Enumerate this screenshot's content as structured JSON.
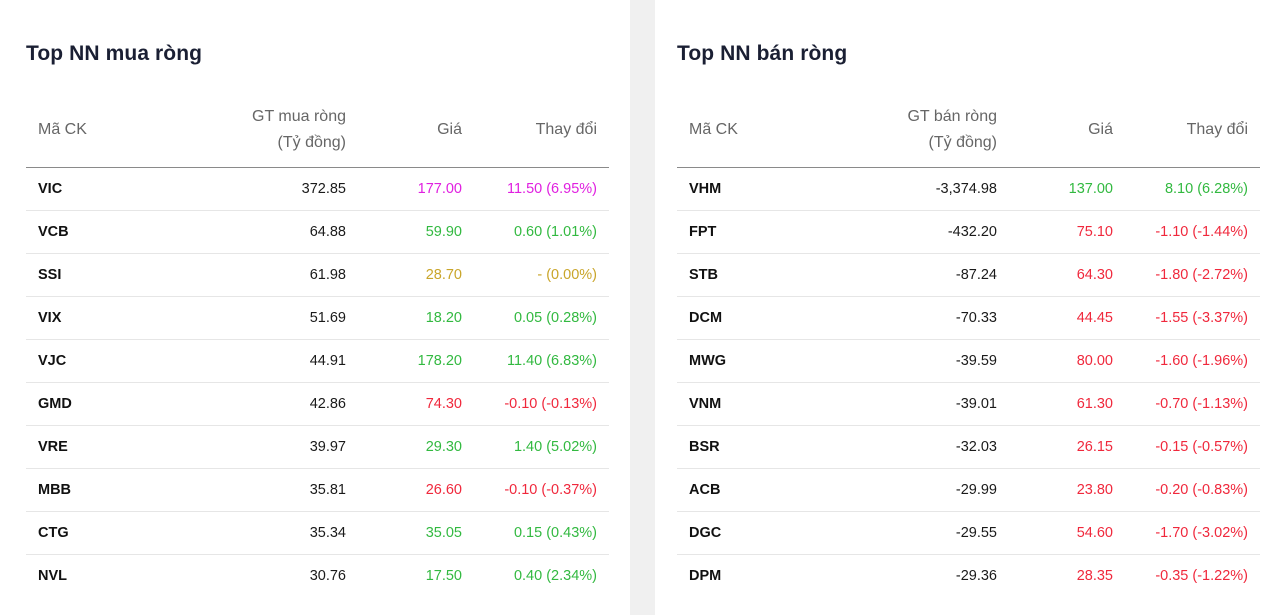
{
  "left": {
    "title": "Top NN mua ròng",
    "headers": {
      "code": "Mã CK",
      "value_line1": "GT mua ròng",
      "value_line2": "(Tỷ đồng)",
      "price": "Giá",
      "change": "Thay đổi"
    },
    "rows": [
      {
        "code": "VIC",
        "value": "372.85",
        "price": "177.00",
        "change": "11.50 (6.95%)",
        "trend": "purple"
      },
      {
        "code": "VCB",
        "value": "64.88",
        "price": "59.90",
        "change": "0.60 (1.01%)",
        "trend": "green"
      },
      {
        "code": "SSI",
        "value": "61.98",
        "price": "28.70",
        "change": "- (0.00%)",
        "trend": "yellow"
      },
      {
        "code": "VIX",
        "value": "51.69",
        "price": "18.20",
        "change": "0.05 (0.28%)",
        "trend": "green"
      },
      {
        "code": "VJC",
        "value": "44.91",
        "price": "178.20",
        "change": "11.40 (6.83%)",
        "trend": "green"
      },
      {
        "code": "GMD",
        "value": "42.86",
        "price": "74.30",
        "change": "-0.10 (-0.13%)",
        "trend": "red"
      },
      {
        "code": "VRE",
        "value": "39.97",
        "price": "29.30",
        "change": "1.40 (5.02%)",
        "trend": "green"
      },
      {
        "code": "MBB",
        "value": "35.81",
        "price": "26.60",
        "change": "-0.10 (-0.37%)",
        "trend": "red"
      },
      {
        "code": "CTG",
        "value": "35.34",
        "price": "35.05",
        "change": "0.15 (0.43%)",
        "trend": "green"
      },
      {
        "code": "NVL",
        "value": "30.76",
        "price": "17.50",
        "change": "0.40 (2.34%)",
        "trend": "green"
      }
    ]
  },
  "right": {
    "title": "Top NN bán ròng",
    "headers": {
      "code": "Mã CK",
      "value_line1": "GT bán ròng",
      "value_line2": "(Tỷ đồng)",
      "price": "Giá",
      "change": "Thay đổi"
    },
    "rows": [
      {
        "code": "VHM",
        "value": "-3,374.98",
        "price": "137.00",
        "change": "8.10 (6.28%)",
        "trend": "green"
      },
      {
        "code": "FPT",
        "value": "-432.20",
        "price": "75.10",
        "change": "-1.10 (-1.44%)",
        "trend": "red"
      },
      {
        "code": "STB",
        "value": "-87.24",
        "price": "64.30",
        "change": "-1.80 (-2.72%)",
        "trend": "red"
      },
      {
        "code": "DCM",
        "value": "-70.33",
        "price": "44.45",
        "change": "-1.55 (-3.37%)",
        "trend": "red"
      },
      {
        "code": "MWG",
        "value": "-39.59",
        "price": "80.00",
        "change": "-1.60 (-1.96%)",
        "trend": "red"
      },
      {
        "code": "VNM",
        "value": "-39.01",
        "price": "61.30",
        "change": "-0.70 (-1.13%)",
        "trend": "red"
      },
      {
        "code": "BSR",
        "value": "-32.03",
        "price": "26.15",
        "change": "-0.15 (-0.57%)",
        "trend": "red"
      },
      {
        "code": "ACB",
        "value": "-29.99",
        "price": "23.80",
        "change": "-0.20 (-0.83%)",
        "trend": "red"
      },
      {
        "code": "DGC",
        "value": "-29.55",
        "price": "54.60",
        "change": "-1.70 (-3.02%)",
        "trend": "red"
      },
      {
        "code": "DPM",
        "value": "-29.36",
        "price": "28.35",
        "change": "-0.35 (-1.22%)",
        "trend": "red"
      }
    ]
  },
  "colors": {
    "purple": "#e020e0",
    "green": "#32b940",
    "yellow": "#c9a52a",
    "red": "#f0283c"
  }
}
